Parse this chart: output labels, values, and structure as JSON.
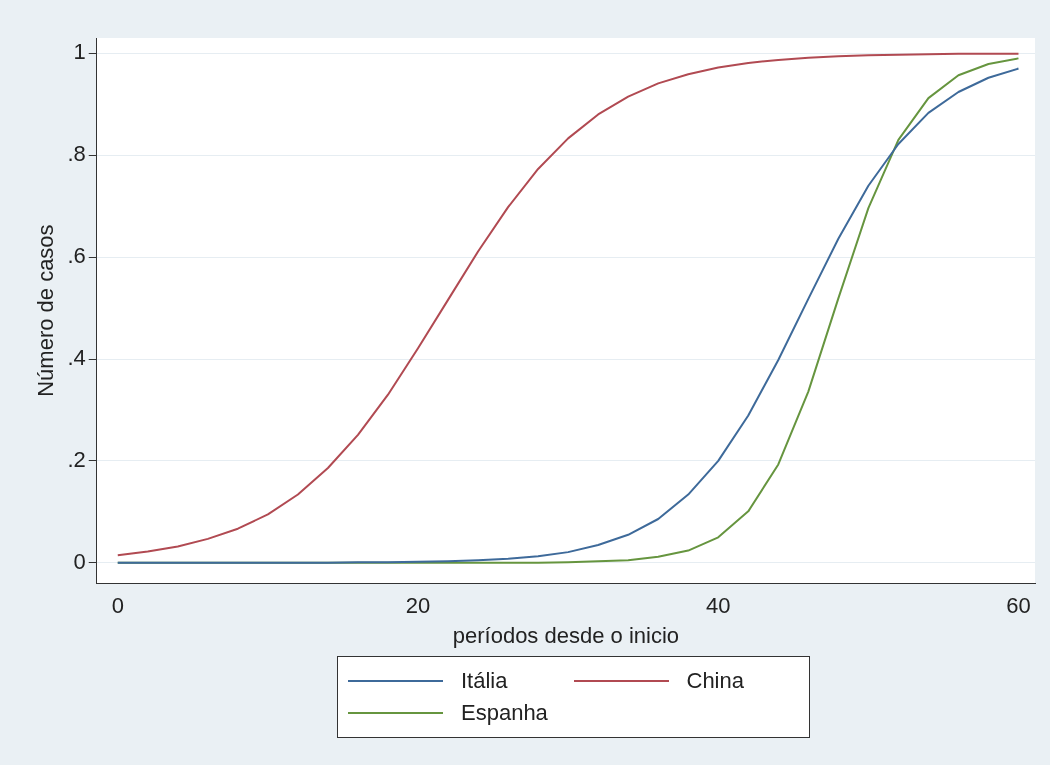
{
  "chart_data": {
    "type": "line",
    "xlabel": "períodos desde o inicio",
    "ylabel": "Número de casos",
    "x": [
      0,
      2,
      4,
      6,
      8,
      10,
      12,
      14,
      16,
      18,
      20,
      22,
      24,
      26,
      28,
      30,
      32,
      34,
      36,
      38,
      40,
      42,
      44,
      46,
      48,
      50,
      52,
      54,
      56,
      58,
      60
    ],
    "series": [
      {
        "name": "Itália",
        "color": "#3e6a9a",
        "values": [
          0,
          0,
          0,
          0,
          0,
          0,
          0,
          0,
          0.001,
          0.001,
          0.002,
          0.003,
          0.005,
          0.008,
          0.013,
          0.021,
          0.035,
          0.055,
          0.086,
          0.134,
          0.2,
          0.289,
          0.398,
          0.518,
          0.636,
          0.74,
          0.822,
          0.883,
          0.924,
          0.952,
          0.97
        ]
      },
      {
        "name": "China",
        "color": "#b14a52",
        "values": [
          0.015,
          0.022,
          0.032,
          0.047,
          0.067,
          0.095,
          0.134,
          0.186,
          0.251,
          0.33,
          0.421,
          0.516,
          0.611,
          0.698,
          0.773,
          0.833,
          0.88,
          0.915,
          0.941,
          0.959,
          0.972,
          0.981,
          0.987,
          0.991,
          0.994,
          0.996,
          0.997,
          0.998,
          0.999,
          0.999,
          0.999
        ]
      },
      {
        "name": "Espanha",
        "color": "#66953f",
        "values": [
          0,
          0,
          0,
          0,
          0,
          0,
          0,
          0,
          0,
          0,
          0,
          0,
          0,
          0,
          0,
          0.001,
          0.003,
          0.005,
          0.012,
          0.024,
          0.05,
          0.101,
          0.193,
          0.336,
          0.519,
          0.696,
          0.83,
          0.912,
          0.957,
          0.979,
          0.99
        ]
      }
    ],
    "xlim": [
      -1.4,
      61.1
    ],
    "xticks": [
      0,
      20,
      40,
      60
    ],
    "ylim": [
      -0.04,
      1.03
    ],
    "yticks": [
      0,
      {
        "value": 0.2,
        "label": ".2"
      },
      {
        "value": 0.4,
        "label": ".4"
      },
      {
        "value": 0.6,
        "label": ".6"
      },
      {
        "value": 0.8,
        "label": ".8"
      },
      1
    ],
    "grid": "y",
    "legend": "bottom",
    "marker": "none",
    "line_style": "solid"
  }
}
